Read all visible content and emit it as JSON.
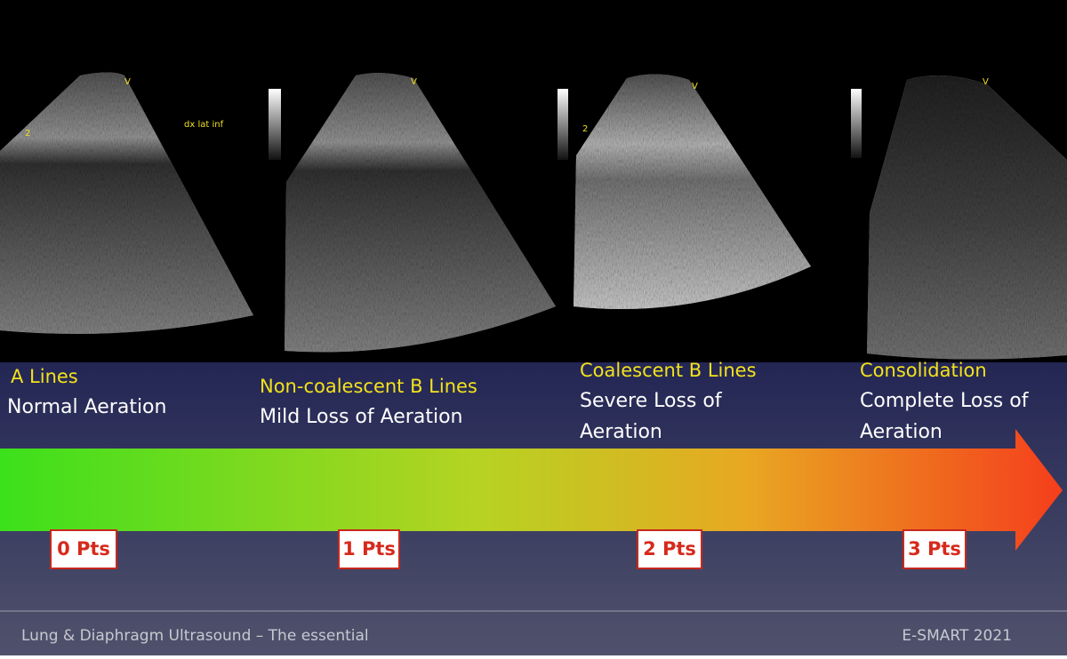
{
  "images": [
    {
      "marker": "V",
      "annotation": "dx lat inf",
      "depth": "2"
    },
    {
      "marker": "V"
    },
    {
      "marker": "V",
      "depth": "2"
    },
    {
      "marker": "V"
    }
  ],
  "stages": [
    {
      "title": "A Lines",
      "description": [
        "Normal Aeration"
      ],
      "points": "0 Pts"
    },
    {
      "title": "Non-coalescent B Lines",
      "description": [
        "Mild Loss of Aeration"
      ],
      "points": "1 Pts"
    },
    {
      "title": "Coalescent B Lines",
      "description": [
        "Severe Loss of",
        "Aeration"
      ],
      "points": "2 Pts"
    },
    {
      "title": "Consolidation",
      "description": [
        "Complete Loss of",
        "Aeration"
      ],
      "points": "3 Pts"
    }
  ],
  "footer": {
    "left": "Lung & Diaphragm Ultrasound – The essential",
    "right": "E-SMART 2021"
  }
}
